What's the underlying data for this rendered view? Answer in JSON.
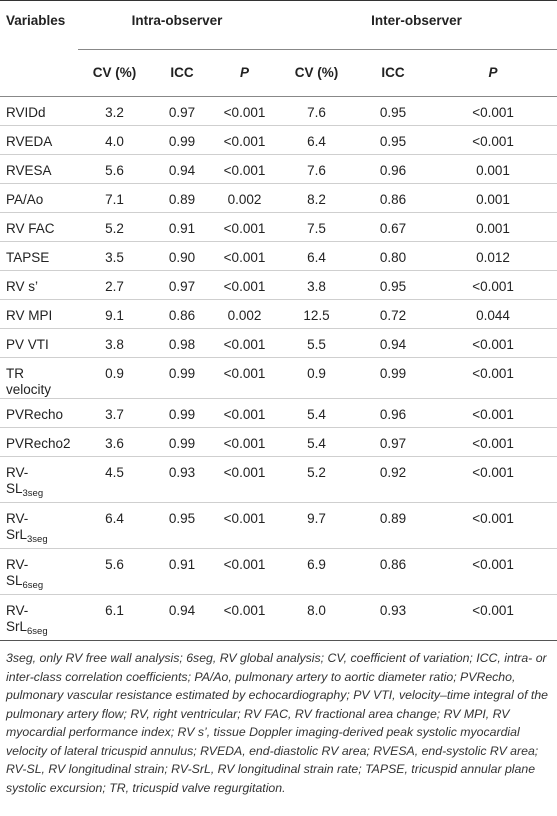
{
  "headers": {
    "variables": "Variables",
    "intra": "Intra-observer",
    "inter": "Inter-observer",
    "cv": "CV (%)",
    "icc": "ICC",
    "p": "P"
  },
  "rows": [
    {
      "name": "RVIDd",
      "intra_cv": "3.2",
      "intra_icc": "0.97",
      "intra_p": "<0.001",
      "inter_cv": "7.6",
      "inter_icc": "0.95",
      "inter_p": "<0.001"
    },
    {
      "name": "RVEDA",
      "intra_cv": "4.0",
      "intra_icc": "0.99",
      "intra_p": "<0.001",
      "inter_cv": "6.4",
      "inter_icc": "0.95",
      "inter_p": "<0.001"
    },
    {
      "name": "RVESA",
      "intra_cv": "5.6",
      "intra_icc": "0.94",
      "intra_p": "<0.001",
      "inter_cv": "7.6",
      "inter_icc": "0.96",
      "inter_p": "0.001"
    },
    {
      "name": "PA/Ao",
      "intra_cv": "7.1",
      "intra_icc": "0.89",
      "intra_p": "0.002",
      "inter_cv": "8.2",
      "inter_icc": "0.86",
      "inter_p": "0.001"
    },
    {
      "name": "RV FAC",
      "intra_cv": "5.2",
      "intra_icc": "0.91",
      "intra_p": "<0.001",
      "inter_cv": "7.5",
      "inter_icc": "0.67",
      "inter_p": "0.001"
    },
    {
      "name": "TAPSE",
      "intra_cv": "3.5",
      "intra_icc": "0.90",
      "intra_p": "<0.001",
      "inter_cv": "6.4",
      "inter_icc": "0.80",
      "inter_p": "0.012"
    },
    {
      "name": "RV s’",
      "intra_cv": "2.7",
      "intra_icc": "0.97",
      "intra_p": "<0.001",
      "inter_cv": "3.8",
      "inter_icc": "0.95",
      "inter_p": "<0.001"
    },
    {
      "name": "RV MPI",
      "intra_cv": "9.1",
      "intra_icc": "0.86",
      "intra_p": "0.002",
      "inter_cv": "12.5",
      "inter_icc": "0.72",
      "inter_p": "0.044"
    },
    {
      "name": "PV VTI",
      "intra_cv": "3.8",
      "intra_icc": "0.98",
      "intra_p": "<0.001",
      "inter_cv": "5.5",
      "inter_icc": "0.94",
      "inter_p": "<0.001"
    },
    {
      "name_line1": "TR",
      "name_line2": "velocity",
      "intra_cv": "0.9",
      "intra_icc": "0.99",
      "intra_p": "<0.001",
      "inter_cv": "0.9",
      "inter_icc": "0.99",
      "inter_p": "<0.001"
    },
    {
      "name": "PVRecho",
      "intra_cv": "3.7",
      "intra_icc": "0.99",
      "intra_p": "<0.001",
      "inter_cv": "5.4",
      "inter_icc": "0.96",
      "inter_p": "<0.001"
    },
    {
      "name": "PVRecho2",
      "intra_cv": "3.6",
      "intra_icc": "0.99",
      "intra_p": "<0.001",
      "inter_cv": "5.4",
      "inter_icc": "0.97",
      "inter_p": "<0.001"
    },
    {
      "name_line1": "RV-",
      "name_line2": "SL",
      "name_sub": "3seg",
      "intra_cv": "4.5",
      "intra_icc": "0.93",
      "intra_p": "<0.001",
      "inter_cv": "5.2",
      "inter_icc": "0.92",
      "inter_p": "<0.001"
    },
    {
      "name_line1": "RV-",
      "name_line2": "SrL",
      "name_sub": "3seg",
      "intra_cv": "6.4",
      "intra_icc": "0.95",
      "intra_p": "<0.001",
      "inter_cv": "9.7",
      "inter_icc": "0.89",
      "inter_p": "<0.001"
    },
    {
      "name_line1": "RV-",
      "name_line2": "SL",
      "name_sub": "6seg",
      "intra_cv": "5.6",
      "intra_icc": "0.91",
      "intra_p": "<0.001",
      "inter_cv": "6.9",
      "inter_icc": "0.86",
      "inter_p": "<0.001"
    },
    {
      "name_line1": "RV-",
      "name_line2": "SrL",
      "name_sub": "6seg",
      "intra_cv": "6.1",
      "intra_icc": "0.94",
      "intra_p": "<0.001",
      "inter_cv": "8.0",
      "inter_icc": "0.93",
      "inter_p": "<0.001"
    }
  ],
  "footnote": "3seg, only RV free wall analysis; 6seg, RV global analysis; CV, coefficient of variation; ICC, intra- or inter-class correlation coefficients; PA/Ao, pulmonary artery to aortic diameter ratio; PVRecho, pulmonary vascular resistance estimated by echocardiography; PV VTI, velocity–time integral of the pulmonary artery flow; RV, right ventricular; RV FAC, RV fractional area change; RV MPI, RV myocardial performance index; RV s’, tissue Doppler imaging-derived peak systolic myocardial velocity of lateral tricuspid annulus; RVEDA, end-diastolic RV area; RVESA, end-systolic RV area; RV-SL, RV longitudinal strain; RV-SrL, RV longitudinal strain rate; TAPSE, tricuspid annular plane systolic excursion; TR, tricuspid valve regurgitation."
}
